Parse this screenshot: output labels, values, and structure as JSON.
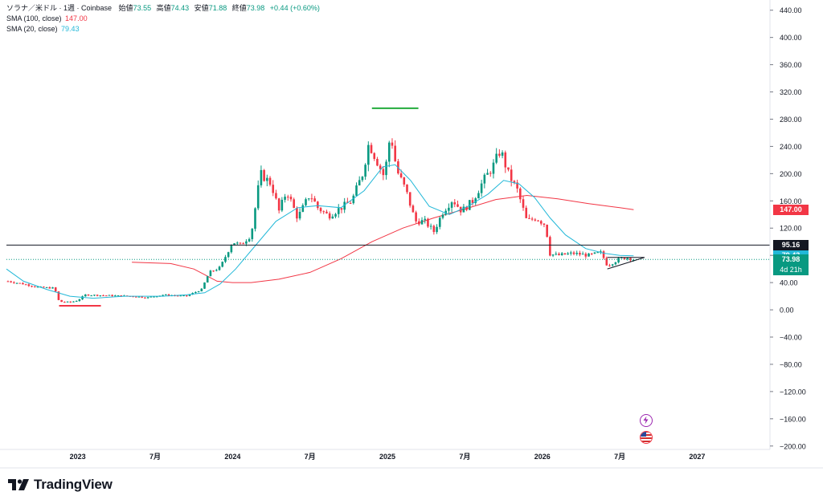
{
  "legend": {
    "symbol": "ソラナ／米ドル · 1週 · Coinbase",
    "open_label": "始値",
    "open": "73.55",
    "high_label": "高値",
    "high": "74.43",
    "low_label": "安値",
    "low": "71.88",
    "close_label": "終値",
    "close": "73.98",
    "change": "+0.44 (+0.60%)",
    "sma100_label": "SMA (100, close)",
    "sma100_value": "147.00",
    "sma20_label": "SMA (20, close)",
    "sma20_value": "79.43"
  },
  "badges": {
    "sma100": "147.00",
    "hline": "95.16",
    "sma20": "79.43",
    "price": "73.98",
    "countdown": "4d 21h"
  },
  "brand": {
    "name": "TradingView"
  },
  "colors": {
    "up": "#089981",
    "down": "#f23645",
    "sma20": "#22b8d8",
    "sma100": "#f23645",
    "hline": "#131722",
    "green_mark": "#22ab3c",
    "red_mark": "#f23645"
  },
  "icons": [
    "lightning-icon",
    "us-flag-icon"
  ],
  "chart_data": {
    "type": "candlestick",
    "y_axis_ticks": [
      "440.00",
      "400.00",
      "360.00",
      "320.00",
      "280.00",
      "240.00",
      "200.00",
      "160.00",
      "120.00",
      "80.00",
      "40.00",
      "0.00",
      "−40.00",
      "−80.00",
      "−120.00",
      "−160.00",
      "−200.00"
    ],
    "ylim": [
      -205,
      455
    ],
    "x_axis_labels": [
      {
        "label": "2023",
        "t": 2023.0
      },
      {
        "label": "7月",
        "t": 2023.5
      },
      {
        "label": "2024",
        "t": 2024.0
      },
      {
        "label": "7月",
        "t": 2024.5
      },
      {
        "label": "2025",
        "t": 2025.0
      },
      {
        "label": "7月",
        "t": 2025.5
      },
      {
        "label": "2026",
        "t": 2026.0
      },
      {
        "label": "7月",
        "t": 2026.5
      },
      {
        "label": "2027",
        "t": 2027.0
      }
    ],
    "xlim": [
      2022.54,
      2027.47
    ],
    "close_path": [
      [
        2022.55,
        42
      ],
      [
        2022.65,
        38
      ],
      [
        2022.75,
        33
      ],
      [
        2022.85,
        32
      ],
      [
        2022.88,
        12
      ],
      [
        2022.95,
        11
      ],
      [
        2023.0,
        14
      ],
      [
        2023.05,
        22
      ],
      [
        2023.2,
        21
      ],
      [
        2023.35,
        20
      ],
      [
        2023.45,
        18
      ],
      [
        2023.55,
        22
      ],
      [
        2023.7,
        20
      ],
      [
        2023.8,
        30
      ],
      [
        2023.85,
        55
      ],
      [
        2023.92,
        62
      ],
      [
        2024.0,
        100
      ],
      [
        2024.05,
        95
      ],
      [
        2024.12,
        110
      ],
      [
        2024.18,
        200
      ],
      [
        2024.25,
        185
      ],
      [
        2024.3,
        145
      ],
      [
        2024.35,
        175
      ],
      [
        2024.42,
        135
      ],
      [
        2024.5,
        170
      ],
      [
        2024.55,
        150
      ],
      [
        2024.62,
        138
      ],
      [
        2024.7,
        150
      ],
      [
        2024.77,
        160
      ],
      [
        2024.84,
        200
      ],
      [
        2024.88,
        245
      ],
      [
        2024.93,
        220
      ],
      [
        2024.98,
        195
      ],
      [
        2025.02,
        260
      ],
      [
        2025.06,
        205
      ],
      [
        2025.12,
        175
      ],
      [
        2025.18,
        130
      ],
      [
        2025.24,
        130
      ],
      [
        2025.3,
        115
      ],
      [
        2025.36,
        145
      ],
      [
        2025.42,
        162
      ],
      [
        2025.48,
        145
      ],
      [
        2025.55,
        160
      ],
      [
        2025.62,
        190
      ],
      [
        2025.68,
        210
      ],
      [
        2025.73,
        235
      ],
      [
        2025.78,
        200
      ],
      [
        2025.84,
        175
      ],
      [
        2025.9,
        130
      ],
      [
        2025.96,
        135
      ],
      [
        2026.02,
        125
      ],
      [
        2026.05,
        82
      ],
      [
        2026.1,
        80
      ],
      [
        2026.2,
        83
      ],
      [
        2026.3,
        80
      ],
      [
        2026.38,
        84
      ],
      [
        2026.42,
        65
      ],
      [
        2026.5,
        75
      ],
      [
        2026.55,
        77
      ],
      [
        2026.59,
        74
      ]
    ],
    "sma20": [
      [
        2022.54,
        60
      ],
      [
        2022.65,
        42
      ],
      [
        2022.8,
        30
      ],
      [
        2022.95,
        20
      ],
      [
        2023.1,
        17
      ],
      [
        2023.3,
        20
      ],
      [
        2023.55,
        20
      ],
      [
        2023.7,
        22
      ],
      [
        2023.82,
        25
      ],
      [
        2023.92,
        38
      ],
      [
        2024.02,
        60
      ],
      [
        2024.15,
        95
      ],
      [
        2024.28,
        130
      ],
      [
        2024.42,
        150
      ],
      [
        2024.55,
        153
      ],
      [
        2024.7,
        150
      ],
      [
        2024.85,
        175
      ],
      [
        2024.97,
        210
      ],
      [
        2025.05,
        213
      ],
      [
        2025.15,
        190
      ],
      [
        2025.27,
        152
      ],
      [
        2025.4,
        140
      ],
      [
        2025.52,
        152
      ],
      [
        2025.65,
        170
      ],
      [
        2025.75,
        190
      ],
      [
        2025.85,
        185
      ],
      [
        2025.95,
        165
      ],
      [
        2026.05,
        135
      ],
      [
        2026.15,
        110
      ],
      [
        2026.28,
        90
      ],
      [
        2026.4,
        83
      ],
      [
        2026.5,
        80
      ],
      [
        2026.59,
        79.43
      ]
    ],
    "sma100": [
      [
        2023.35,
        70
      ],
      [
        2023.6,
        68
      ],
      [
        2023.75,
        60
      ],
      [
        2023.9,
        42
      ],
      [
        2024.0,
        40
      ],
      [
        2024.12,
        40
      ],
      [
        2024.3,
        45
      ],
      [
        2024.5,
        55
      ],
      [
        2024.7,
        75
      ],
      [
        2024.9,
        100
      ],
      [
        2025.1,
        120
      ],
      [
        2025.3,
        135
      ],
      [
        2025.5,
        148
      ],
      [
        2025.7,
        162
      ],
      [
        2025.9,
        168
      ],
      [
        2026.1,
        163
      ],
      [
        2026.3,
        156
      ],
      [
        2026.5,
        150
      ],
      [
        2026.59,
        147.0
      ]
    ],
    "horizontal_line": 95.16,
    "last_price": 73.98,
    "annotations": [
      {
        "type": "segment",
        "color": "green",
        "t1": 2024.9,
        "t2": 2025.2,
        "y": 296
      },
      {
        "type": "segment",
        "color": "red",
        "t1": 2022.88,
        "t2": 2023.15,
        "y": 6
      },
      {
        "type": "triangle",
        "t1": 2026.42,
        "t2": 2026.66,
        "top": 77,
        "bottom": 60
      }
    ]
  }
}
